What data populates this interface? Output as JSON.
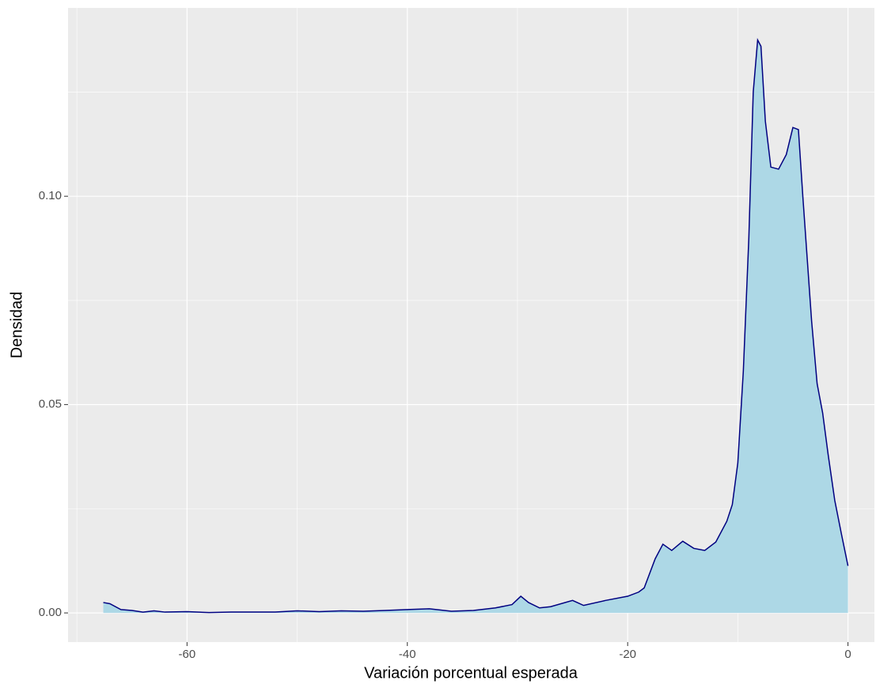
{
  "chart_data": {
    "type": "density",
    "x_label": "Variación porcentual esperada",
    "y_label": "Densidad",
    "x": [
      -67.6,
      -67,
      -66,
      -65,
      -64,
      -63,
      -62,
      -60,
      -58,
      -56,
      -54,
      -52,
      -50,
      -48,
      -46,
      -44,
      -42,
      -40,
      -38,
      -36,
      -34,
      -32,
      -30.5,
      -29.7,
      -29,
      -28,
      -27,
      -25,
      -24,
      -22,
      -20,
      -19,
      -18.5,
      -17.5,
      -16.8,
      -16,
      -15,
      -14,
      -13,
      -12,
      -11,
      -10.5,
      -10,
      -9.5,
      -9,
      -8.6,
      -8.2,
      -7.9,
      -7.5,
      -7,
      -6.3,
      -5.6,
      -5,
      -4.5,
      -4.1,
      -3.7,
      -3.3,
      -2.8,
      -2.3,
      -1.8,
      -1.2,
      -0.6,
      0
    ],
    "values": [
      0.0025,
      0.0022,
      0.0008,
      0.0006,
      0.0002,
      0.0005,
      0.0002,
      0.0003,
      0.0001,
      0.0002,
      0.0002,
      0.0002,
      0.0005,
      0.0003,
      0.0005,
      0.0004,
      0.0006,
      0.0008,
      0.001,
      0.0004,
      0.0006,
      0.0012,
      0.002,
      0.004,
      0.0025,
      0.0012,
      0.0015,
      0.003,
      0.0018,
      0.003,
      0.004,
      0.005,
      0.006,
      0.013,
      0.0165,
      0.015,
      0.0172,
      0.0155,
      0.015,
      0.017,
      0.022,
      0.026,
      0.036,
      0.058,
      0.09,
      0.125,
      0.1375,
      0.136,
      0.118,
      0.107,
      0.1065,
      0.11,
      0.1165,
      0.116,
      0.1,
      0.085,
      0.07,
      0.055,
      0.048,
      0.038,
      0.027,
      0.019,
      0.0113
    ],
    "fill": "#add8e6",
    "color": "#000080",
    "xlim": [
      -70.8,
      2.4
    ],
    "ylim": [
      -0.007,
      0.1452
    ],
    "xticks": [
      -60,
      -40,
      -20,
      0
    ],
    "yticks": [
      {
        "value": 0,
        "label": "0.00"
      },
      {
        "value": 0.05,
        "label": "0.05"
      },
      {
        "value": 0.1,
        "label": "0.10"
      }
    ],
    "grid": true
  }
}
